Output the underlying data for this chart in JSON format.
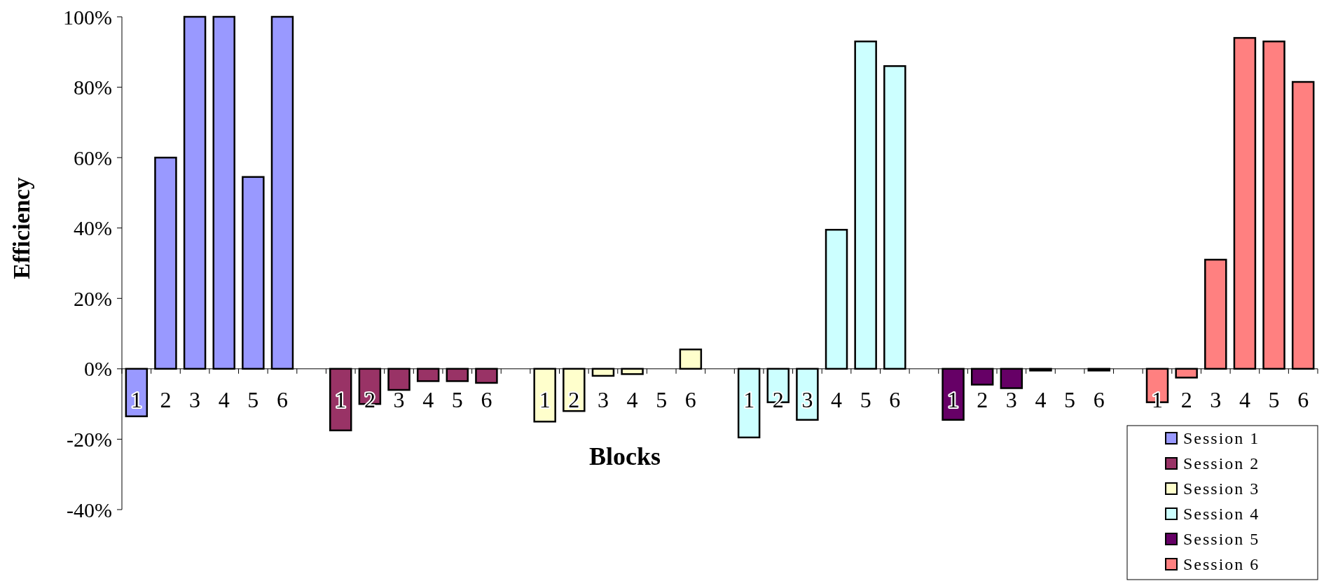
{
  "chart_data": {
    "type": "bar",
    "stacked": true,
    "xlabel": "Blocks",
    "ylabel": "Efficiency",
    "categories": [
      "1",
      "2",
      "3",
      "4",
      "5",
      "6",
      null,
      "1",
      "2",
      "3",
      "4",
      "5",
      "6",
      null,
      "1",
      "2",
      "3",
      "4",
      "5",
      "6",
      null,
      "1",
      "2",
      "3",
      "4",
      "5",
      "6",
      null,
      "1",
      "2",
      "3",
      "4",
      "5",
      "6",
      null,
      "1",
      "2",
      "3",
      "4",
      "5",
      "6"
    ],
    "series": [
      {
        "name": "Session 1",
        "color": "#9999ff",
        "values": [
          -13.5,
          60,
          100,
          100,
          54.5,
          100,
          null,
          null,
          null,
          null,
          null,
          null,
          null,
          null,
          null,
          null,
          null,
          null,
          null,
          null,
          null,
          null,
          null,
          null,
          null,
          null,
          null,
          null,
          null,
          null,
          null,
          null,
          null,
          null,
          null,
          null,
          null,
          null,
          null,
          null,
          null
        ]
      },
      {
        "name": "Session 2",
        "color": "#993366",
        "values": [
          null,
          null,
          null,
          null,
          null,
          null,
          null,
          -17.5,
          -10,
          -6,
          -3.5,
          -3.5,
          -4,
          null,
          null,
          null,
          null,
          null,
          null,
          null,
          null,
          null,
          null,
          null,
          null,
          null,
          null,
          null,
          null,
          null,
          null,
          null,
          null,
          null,
          null,
          null,
          null,
          null,
          null,
          null,
          null
        ]
      },
      {
        "name": "Session 3",
        "color": "#ffffcc",
        "values": [
          null,
          null,
          null,
          null,
          null,
          null,
          null,
          null,
          null,
          null,
          null,
          null,
          null,
          null,
          -15,
          -12,
          -2,
          -1.5,
          null,
          5.5,
          null,
          null,
          null,
          null,
          null,
          null,
          null,
          null,
          null,
          null,
          null,
          null,
          null,
          null,
          null,
          null,
          null,
          null,
          null,
          null,
          null
        ]
      },
      {
        "name": "Session 4",
        "color": "#ccffff",
        "values": [
          null,
          null,
          null,
          null,
          null,
          null,
          null,
          null,
          null,
          null,
          null,
          null,
          null,
          null,
          null,
          null,
          null,
          null,
          null,
          null,
          null,
          -19.5,
          -9.5,
          -14.5,
          39.5,
          93,
          86,
          null,
          null,
          null,
          null,
          null,
          null,
          null,
          null,
          null,
          null,
          null,
          null,
          null,
          null
        ]
      },
      {
        "name": "Session 5",
        "color": "#660066",
        "values": [
          null,
          null,
          null,
          null,
          null,
          null,
          null,
          null,
          null,
          null,
          null,
          null,
          null,
          null,
          null,
          null,
          null,
          null,
          null,
          null,
          null,
          null,
          null,
          null,
          null,
          null,
          null,
          null,
          -14.5,
          -4.5,
          -5.5,
          -0.5,
          null,
          -0.5,
          null,
          null,
          null,
          null,
          null,
          null,
          null
        ]
      },
      {
        "name": "Session 6",
        "color": "#ff8080",
        "values": [
          null,
          null,
          null,
          null,
          null,
          null,
          null,
          null,
          null,
          null,
          null,
          null,
          null,
          null,
          null,
          null,
          null,
          null,
          null,
          null,
          null,
          null,
          null,
          null,
          null,
          null,
          null,
          null,
          null,
          null,
          null,
          null,
          null,
          null,
          null,
          -9.5,
          -2.5,
          31,
          94,
          93,
          81.5
        ]
      }
    ],
    "ylim": [
      -40,
      100
    ],
    "yticks": [
      {
        "value": -40,
        "label": "-40%"
      },
      {
        "value": -20,
        "label": "-20%"
      },
      {
        "value": 0,
        "label": "0%"
      },
      {
        "value": 20,
        "label": "20%"
      },
      {
        "value": 40,
        "label": "40%"
      },
      {
        "value": 60,
        "label": "60%"
      },
      {
        "value": 80,
        "label": "80%"
      },
      {
        "value": 100,
        "label": "100%"
      }
    ],
    "grid": false,
    "legend": "bottom right"
  }
}
